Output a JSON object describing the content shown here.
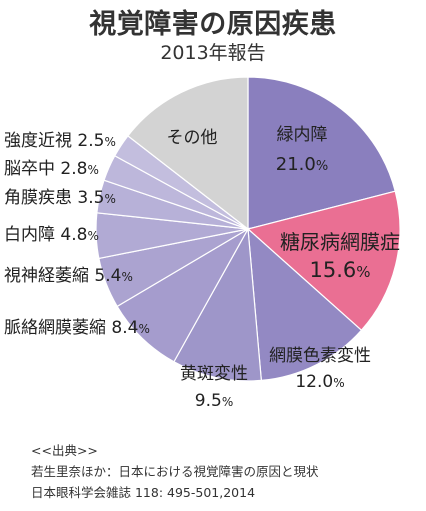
{
  "title": "視覚障害の原因疾患",
  "subtitle": "2013年報告",
  "chart_data": {
    "type": "pie",
    "title": "視覚障害の原因疾患",
    "subtitle": "2013年報告",
    "unit": "%",
    "slices": [
      {
        "label": "緑内障",
        "value": 21.0,
        "value_text": "21.0",
        "color": "#8a7fbe"
      },
      {
        "label": "糖尿病網膜症",
        "value": 15.6,
        "value_text": "15.6",
        "color": "#ea6f93"
      },
      {
        "label": "網膜色素変性",
        "value": 12.0,
        "value_text": "12.0",
        "color": "#9389c3"
      },
      {
        "label": "黄斑変性",
        "value": 9.5,
        "value_text": "9.5",
        "color": "#9e96c9"
      },
      {
        "label": "脈絡網膜萎縮",
        "value": 8.4,
        "value_text": "8.4",
        "color": "#a59ccd"
      },
      {
        "label": "視神経萎縮",
        "value": 5.4,
        "value_text": "5.4",
        "color": "#aba3d0"
      },
      {
        "label": "白内障",
        "value": 4.8,
        "value_text": "4.8",
        "color": "#b1aad4"
      },
      {
        "label": "角膜疾患",
        "value": 3.5,
        "value_text": "3.5",
        "color": "#b7b1d8"
      },
      {
        "label": "脳卒中",
        "value": 2.8,
        "value_text": "2.8",
        "color": "#bdb7db"
      },
      {
        "label": "強度近視",
        "value": 2.5,
        "value_text": "2.5",
        "color": "#c3bede"
      },
      {
        "label": "その他",
        "value": 14.5,
        "value_text": "",
        "color": "#d3d3d3"
      }
    ]
  },
  "source": {
    "heading": "<<出典>>",
    "line1": "若生里奈ほか：日本における視覚障害の原因と現状",
    "line2": "日本眼科学会雑誌 118: 495-501,2014"
  }
}
